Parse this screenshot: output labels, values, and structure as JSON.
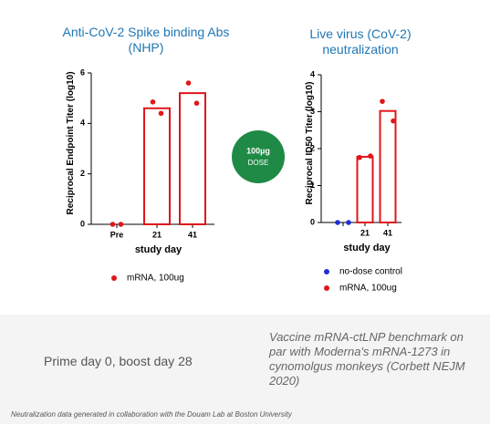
{
  "chart_data": [
    {
      "type": "bar",
      "title": "Anti-CoV-2 Spike binding Abs (NHP)",
      "y_label": "Reciprocal Endpoint Titer (log10)",
      "x_label": "study day",
      "categories": [
        "Pre",
        "21",
        "41"
      ],
      "series": [
        {
          "name": "mRNA, 100ug",
          "color": "#e0161b",
          "values": [
            0,
            4.6,
            5.2
          ],
          "points": [
            [
              0,
              0
            ],
            [
              4.85,
              4.4
            ],
            [
              5.6,
              4.8
            ]
          ]
        }
      ],
      "ylim": [
        0,
        6
      ],
      "yticks": [
        0,
        2,
        4,
        6
      ]
    },
    {
      "type": "bar",
      "title": "Live virus (CoV-2) neutralization",
      "y_label": "Reciprocal ID50 Titer (log10)",
      "x_label": "study day",
      "categories": [
        null,
        "21",
        "41"
      ],
      "series": [
        {
          "name": "no-dose control",
          "color": "#1f2fd6",
          "values": [
            0,
            null,
            null
          ],
          "points": [
            [
              0,
              0
            ],
            null,
            null
          ]
        },
        {
          "name": "mRNA, 100ug",
          "color": "#e0161b",
          "values": [
            null,
            1.78,
            3.02
          ],
          "points": [
            null,
            [
              1.76,
              1.8
            ],
            [
              3.28,
              2.75
            ]
          ]
        }
      ],
      "ylim": [
        0,
        4
      ],
      "yticks": [
        0,
        1,
        2,
        3,
        4
      ]
    }
  ],
  "badge": {
    "line1": "100µg",
    "line2": "DOSE"
  },
  "schedule": "Prime day 0, boost day 28",
  "benchmark": "Vaccine mRNA-ctLNP benchmark on par with Moderna's mRNA-1273 in cynomolgus monkeys (Corbett NEJM 2020)",
  "footnote": "Neutralization data generated in collaboration with the Douam Lab at Boston University"
}
